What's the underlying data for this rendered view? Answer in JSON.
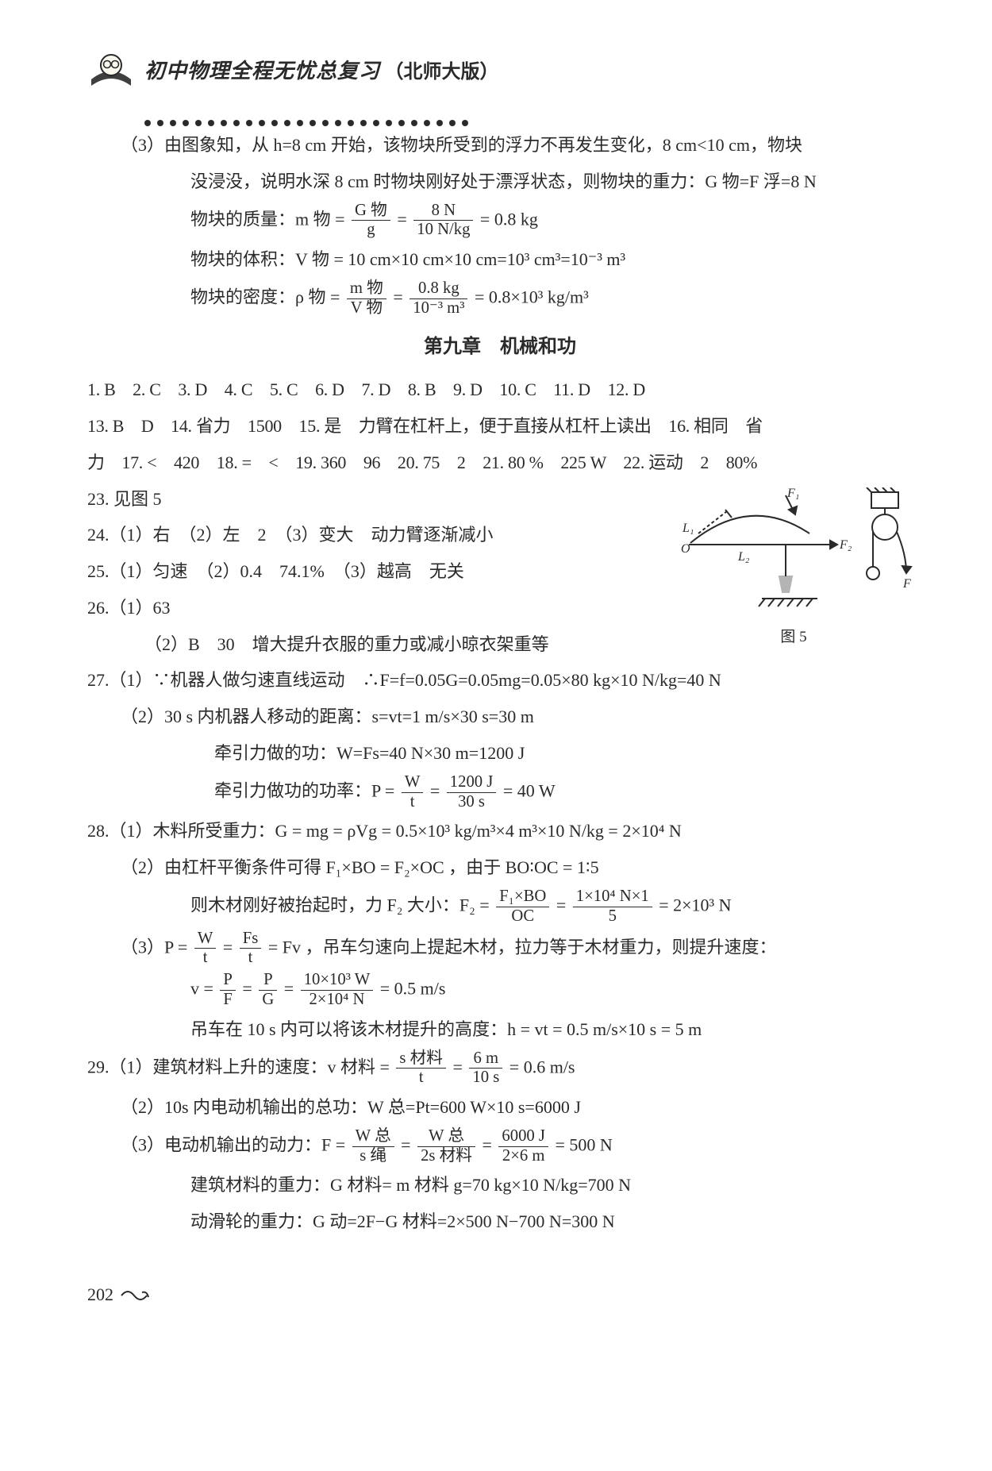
{
  "header": {
    "title": "初中物理全程无忧总复习",
    "paren": "（北师大版）",
    "dots_count": 26,
    "dot_color": "#2a2a2a"
  },
  "section3": {
    "l1": "（3）由图象知，从 h=8 cm 开始，该物块所受到的浮力不再发生变化，8 cm<10 cm，物块",
    "l2": "没浸没，说明水深 8 cm 时物块刚好处于漂浮状态，则物块的重力：G 物=F 浮=8 N",
    "l3_pre": "物块的质量：m 物 = ",
    "l3_num": "G 物",
    "l3_den": "g",
    "l3_mid": " = ",
    "l3_num2": "8 N",
    "l3_den2": "10 N/kg",
    "l3_post": " = 0.8 kg",
    "l4": "物块的体积：V 物 = 10 cm×10 cm×10 cm=10³ cm³=10⁻³ m³",
    "l5_pre": "物块的密度：ρ 物 = ",
    "l5_num": "m 物",
    "l5_den": "V 物",
    "l5_mid": " = ",
    "l5_num2": "0.8 kg",
    "l5_den2": "10⁻³ m³",
    "l5_post": " = 0.8×10³ kg/m³"
  },
  "chapter": {
    "title": "第九章　机械和功"
  },
  "mc": {
    "row1": "1. B　2. C　3. D　4. C　5. C　6. D　7. D　8. B　9. D　10. C　11. D　12. D",
    "row2": "13. B　D　14. 省力　1500　15. 是　力臂在杠杆上，便于直接从杠杆上读出　16. 相同　省",
    "row3": "力　17. <　420　18. =　<　19. 360　96　20. 75　2　21. 80 %　225 W　22. 运动　2　80%"
  },
  "q23": {
    "text": "23. 见图 5"
  },
  "q24": {
    "text": "24.（1）右　（2）左　2　（3）变大　动力臂逐渐减小"
  },
  "q25": {
    "text": "25.（1）匀速　（2）0.4　74.1%　（3）越高　无关"
  },
  "q26": {
    "l1": "26.（1）63",
    "l2": "（2）B　30　增大提升衣服的重力或减小晾衣架重等"
  },
  "fig5": {
    "caption": "图 5",
    "labels": {
      "F1": "F₁",
      "F2": "F₂",
      "L1": "L₁",
      "L2": "L₂",
      "O": "O",
      "F": "F"
    }
  },
  "q27": {
    "l1": "27.（1）∵机器人做匀速直线运动　∴F=f=0.05G=0.05mg=0.05×80 kg×10 N/kg=40 N",
    "l2": "（2）30 s 内机器人移动的距离：s=vt=1 m/s×30 s=30 m",
    "l3": "牵引力做的功：W=Fs=40 N×30 m=1200 J",
    "l4_pre": "牵引力做功的功率：P = ",
    "l4_num": "W",
    "l4_den": "t",
    "l4_mid": " = ",
    "l4_num2": "1200 J",
    "l4_den2": "30 s",
    "l4_post": " = 40 W"
  },
  "q28": {
    "l1": "28.（1）木料所受重力：G = mg = ρVg = 0.5×10³ kg/m³×4 m³×10 N/kg = 2×10⁴ N",
    "l2": "（2）由杠杆平衡条件可得 F₁×BO = F₂×OC ，由于 BO∶OC = 1∶5",
    "l3_pre": "则木材刚好被抬起时，力 F₂ 大小：F₂ = ",
    "l3_num": "F₁×BO",
    "l3_den": "OC",
    "l3_mid": " = ",
    "l3_num2": "1×10⁴ N×1",
    "l3_den2": "5",
    "l3_post": " = 2×10³ N",
    "l4_pre": "（3）P = ",
    "l4_n1": "W",
    "l4_d1": "t",
    "l4_m1": " = ",
    "l4_n2": "Fs",
    "l4_d2": "t",
    "l4_post1": " = Fv ，吊车匀速向上提起木材，拉力等于木材重力，则提升速度：",
    "l5_pre": "v = ",
    "l5_n1": "P",
    "l5_d1": "F",
    "l5_m1": " = ",
    "l5_n2": "P",
    "l5_d2": "G",
    "l5_m2": " = ",
    "l5_n3": "10×10³ W",
    "l5_d3": "2×10⁴ N",
    "l5_post": " = 0.5 m/s",
    "l6": "吊车在 10 s 内可以将该木材提升的高度：h = vt = 0.5 m/s×10 s = 5 m"
  },
  "q29": {
    "l1_pre": "29.（1）建筑材料上升的速度：v 材料 = ",
    "l1_n1": "s 材料",
    "l1_d1": "t",
    "l1_m1": " = ",
    "l1_n2": "6 m",
    "l1_d2": "10 s",
    "l1_post": " = 0.6 m/s",
    "l2": "（2）10s 内电动机输出的总功：W 总=Pt=600 W×10 s=6000 J",
    "l3_pre": "（3）电动机输出的动力：F = ",
    "l3_n1": "W 总",
    "l3_d1": "s 绳",
    "l3_m1": " = ",
    "l3_n2": "W 总",
    "l3_d2": "2s 材料",
    "l3_m2": " = ",
    "l3_n3": "6000 J",
    "l3_d3": "2×6 m",
    "l3_post": " = 500 N",
    "l4": "建筑材料的重力：G 材料= m 材料 g=70 kg×10 N/kg=700 N",
    "l5": "动滑轮的重力：G 动=2F−G 材料=2×500 N−700 N=300 N"
  },
  "page_number": "202",
  "colors": {
    "text": "#2a2a2a",
    "background": "#ffffff",
    "rule": "#2a2a2a"
  },
  "typography": {
    "body_font": "SimSun / Songti",
    "body_size_pt": 16,
    "title_font": "KaiTi",
    "line_height": 1.9
  }
}
